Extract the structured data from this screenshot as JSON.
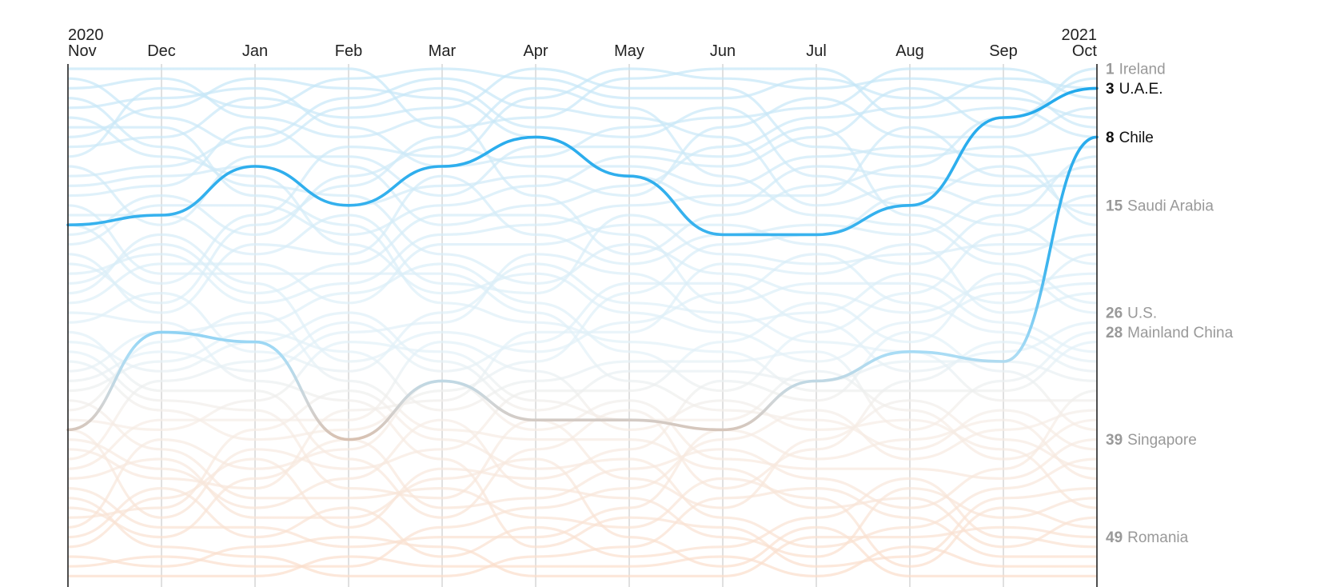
{
  "chart_data": {
    "type": "line",
    "title": "",
    "xlabel": "",
    "ylabel": "",
    "x": [
      "Nov",
      "Dec",
      "Jan",
      "Feb",
      "Mar",
      "Apr",
      "May",
      "Jun",
      "Jul",
      "Aug",
      "Sep",
      "Oct"
    ],
    "years": [
      {
        "label": "2020",
        "at": "Nov"
      },
      {
        "label": "2021",
        "at": "Oct"
      }
    ],
    "ylim": [
      1,
      53
    ],
    "y_inverted": true,
    "grid": true,
    "right_labels": [
      {
        "rank": 1,
        "rank_text": "1",
        "name": "Ireland",
        "highlight": false
      },
      {
        "rank": 3,
        "rank_text": "3",
        "name": "U.A.E.",
        "highlight": true
      },
      {
        "rank": 8,
        "rank_text": "8",
        "name": "Chile",
        "highlight": true
      },
      {
        "rank": 15,
        "rank_text": "15",
        "name": "Saudi Arabia",
        "highlight": false
      },
      {
        "rank": 26,
        "rank_text": "26",
        "name": "U.S.",
        "highlight": false
      },
      {
        "rank": 28,
        "rank_text": "28",
        "name": "Mainland China",
        "highlight": false
      },
      {
        "rank": 39,
        "rank_text": "39",
        "name": "Singapore",
        "highlight": false
      },
      {
        "rank": 49,
        "rank_text": "49",
        "name": "Romania",
        "highlight": false
      }
    ],
    "series": [
      {
        "values": [
          17,
          16,
          11,
          15,
          11,
          8,
          12,
          18,
          18,
          15,
          6,
          3
        ],
        "highlight": true
      },
      {
        "values": [
          38,
          28,
          29,
          39,
          33,
          37,
          37,
          38,
          33,
          30,
          31,
          8
        ],
        "highlight": true
      }
    ],
    "background_series_count": 53
  },
  "colors": {
    "highlight_top": "#1fa8ec",
    "highlight_light": "#a9dcf5",
    "highlight_bottom": "#dcb8a0",
    "background_top": "#c4e6f7",
    "background_bottom": "#fbdcc8",
    "gridline": "#cccccc",
    "axis": "#222222"
  }
}
